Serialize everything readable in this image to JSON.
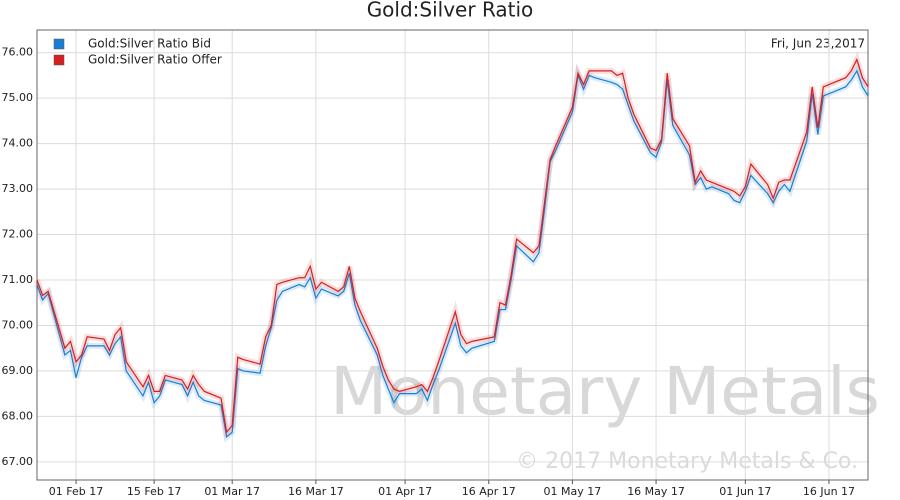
{
  "chart_data": {
    "type": "line",
    "title": "Gold:Silver Ratio",
    "date_label": "Fri, Jun 23,2017",
    "watermark": "Monetary Metals",
    "copyright": "© 2017 Monetary Metals & Co.",
    "grid": true,
    "legend": "top-left",
    "x": [
      "2017-01-25",
      "2017-01-26",
      "2017-01-27",
      "2017-01-30",
      "2017-01-31",
      "2017-02-01",
      "2017-02-02",
      "2017-02-03",
      "2017-02-06",
      "2017-02-07",
      "2017-02-08",
      "2017-02-09",
      "2017-02-10",
      "2017-02-13",
      "2017-02-14",
      "2017-02-15",
      "2017-02-16",
      "2017-02-17",
      "2017-02-20",
      "2017-02-21",
      "2017-02-22",
      "2017-02-23",
      "2017-02-24",
      "2017-02-27",
      "2017-02-28",
      "2017-03-01",
      "2017-03-02",
      "2017-03-03",
      "2017-03-06",
      "2017-03-07",
      "2017-03-08",
      "2017-03-09",
      "2017-03-10",
      "2017-03-13",
      "2017-03-14",
      "2017-03-15",
      "2017-03-16",
      "2017-03-17",
      "2017-03-20",
      "2017-03-21",
      "2017-03-22",
      "2017-03-23",
      "2017-03-24",
      "2017-03-27",
      "2017-03-28",
      "2017-03-29",
      "2017-03-30",
      "2017-03-31",
      "2017-04-03",
      "2017-04-04",
      "2017-04-05",
      "2017-04-06",
      "2017-04-07",
      "2017-04-10",
      "2017-04-11",
      "2017-04-12",
      "2017-04-13",
      "2017-04-17",
      "2017-04-18",
      "2017-04-19",
      "2017-04-20",
      "2017-04-21",
      "2017-04-24",
      "2017-04-25",
      "2017-04-26",
      "2017-04-27",
      "2017-04-28",
      "2017-05-01",
      "2017-05-02",
      "2017-05-03",
      "2017-05-04",
      "2017-05-05",
      "2017-05-08",
      "2017-05-09",
      "2017-05-10",
      "2017-05-11",
      "2017-05-12",
      "2017-05-15",
      "2017-05-16",
      "2017-05-17",
      "2017-05-18",
      "2017-05-19",
      "2017-05-22",
      "2017-05-23",
      "2017-05-24",
      "2017-05-25",
      "2017-05-26",
      "2017-05-29",
      "2017-05-30",
      "2017-05-31",
      "2017-06-01",
      "2017-06-02",
      "2017-06-05",
      "2017-06-06",
      "2017-06-07",
      "2017-06-08",
      "2017-06-09",
      "2017-06-12",
      "2017-06-13",
      "2017-06-14",
      "2017-06-15",
      "2017-06-16",
      "2017-06-19",
      "2017-06-20",
      "2017-06-21",
      "2017-06-22",
      "2017-06-23"
    ],
    "series": [
      {
        "name": "Gold:Silver Ratio Bid",
        "color": "#1a7fd4",
        "values": [
          70.9,
          70.56,
          70.7,
          69.35,
          69.45,
          68.85,
          69.3,
          69.55,
          69.55,
          69.35,
          69.6,
          69.75,
          69.0,
          68.45,
          68.75,
          68.3,
          68.45,
          68.8,
          68.7,
          68.45,
          68.75,
          68.45,
          68.35,
          68.25,
          67.55,
          67.65,
          69.05,
          69.0,
          68.95,
          69.55,
          69.95,
          70.55,
          70.75,
          70.9,
          70.85,
          71.05,
          70.6,
          70.8,
          70.65,
          70.75,
          71.15,
          70.45,
          70.1,
          69.35,
          68.9,
          68.6,
          68.3,
          68.5,
          68.5,
          68.6,
          68.35,
          68.7,
          69.0,
          70.05,
          69.55,
          69.4,
          69.5,
          69.65,
          70.35,
          70.35,
          71.0,
          71.75,
          71.4,
          71.6,
          72.55,
          73.6,
          73.85,
          74.7,
          75.5,
          75.2,
          75.5,
          75.45,
          75.35,
          75.3,
          75.2,
          74.85,
          74.5,
          73.8,
          73.7,
          74.05,
          75.4,
          74.4,
          73.75,
          73.1,
          73.25,
          73.0,
          73.05,
          72.9,
          72.75,
          72.7,
          72.95,
          73.3,
          72.9,
          72.7,
          72.95,
          73.1,
          72.95,
          74.05,
          75.1,
          74.2,
          75.05,
          75.1,
          75.25,
          75.4,
          75.6,
          75.25,
          75.05
        ]
      },
      {
        "name": "Gold:Silver Ratio Offer",
        "color": "#d61f1f",
        "values": [
          71.0,
          70.66,
          70.75,
          69.5,
          69.65,
          69.2,
          69.35,
          69.75,
          69.7,
          69.45,
          69.8,
          69.95,
          69.2,
          68.65,
          68.9,
          68.55,
          68.55,
          68.9,
          68.8,
          68.6,
          68.9,
          68.7,
          68.55,
          68.4,
          67.65,
          67.8,
          69.3,
          69.25,
          69.15,
          69.75,
          70.0,
          70.9,
          70.95,
          71.05,
          71.05,
          71.3,
          70.8,
          70.95,
          70.75,
          70.85,
          71.3,
          70.6,
          70.3,
          69.5,
          69.1,
          68.8,
          68.6,
          68.55,
          68.65,
          68.7,
          68.55,
          68.85,
          69.2,
          70.3,
          69.8,
          69.6,
          69.65,
          69.75,
          70.5,
          70.45,
          71.1,
          71.9,
          71.6,
          71.75,
          72.7,
          73.65,
          73.95,
          74.8,
          75.55,
          75.3,
          75.6,
          75.6,
          75.6,
          75.5,
          75.55,
          75.0,
          74.65,
          73.9,
          73.85,
          74.1,
          75.55,
          74.55,
          73.95,
          73.15,
          73.4,
          73.2,
          73.15,
          73.0,
          72.95,
          72.85,
          73.05,
          73.55,
          73.1,
          72.8,
          73.15,
          73.2,
          73.2,
          74.25,
          75.25,
          74.35,
          75.25,
          75.3,
          75.45,
          75.6,
          75.85,
          75.45,
          75.25
        ]
      }
    ],
    "xlim": [
      "2017-01-25",
      "2017-06-23"
    ],
    "xticks": [
      {
        "value": "2017-02-01",
        "label": "01 Feb 17"
      },
      {
        "value": "2017-02-15",
        "label": "15 Feb 17"
      },
      {
        "value": "2017-03-01",
        "label": "01 Mar 17"
      },
      {
        "value": "2017-03-16",
        "label": "16 Mar 17"
      },
      {
        "value": "2017-04-01",
        "label": "01 Apr 17"
      },
      {
        "value": "2017-04-16",
        "label": "16 Apr 17"
      },
      {
        "value": "2017-05-01",
        "label": "01 May 17"
      },
      {
        "value": "2017-05-16",
        "label": "16 May 17"
      },
      {
        "value": "2017-06-01",
        "label": "01 Jun 17"
      },
      {
        "value": "2017-06-16",
        "label": "16 Jun 17"
      }
    ],
    "ylim": [
      66.6,
      76.5
    ],
    "yticks": [
      {
        "value": 67,
        "label": "67.00"
      },
      {
        "value": 68,
        "label": "68.00"
      },
      {
        "value": 69,
        "label": "69.00"
      },
      {
        "value": 70,
        "label": "70.00"
      },
      {
        "value": 71,
        "label": "71.00"
      },
      {
        "value": 72,
        "label": "72.00"
      },
      {
        "value": 73,
        "label": "73.00"
      },
      {
        "value": 74,
        "label": "74.00"
      },
      {
        "value": 75,
        "label": "75.00"
      },
      {
        "value": 76,
        "label": "76.00"
      }
    ]
  }
}
